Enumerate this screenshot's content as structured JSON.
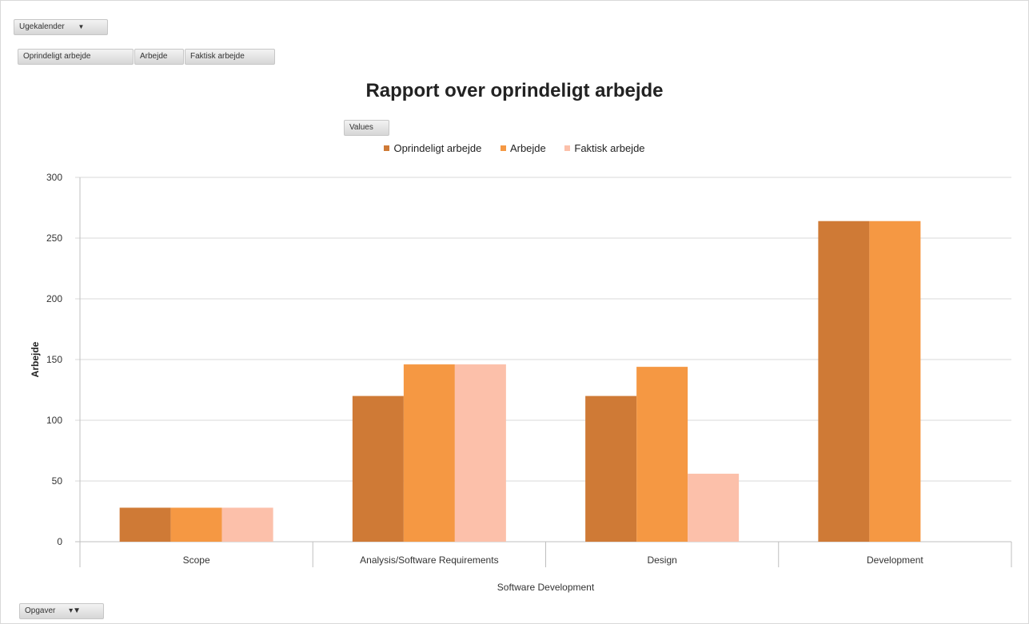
{
  "controls": {
    "calendar_filter": "Ugekalender",
    "value_fields": [
      "Oprindeligt arbejde",
      "Arbejde",
      "Faktisk arbejde"
    ],
    "values_button": "Values",
    "row_filter": "Opgaver"
  },
  "colors": {
    "series": [
      "#cf7a36",
      "#f59843",
      "#fcc0aa"
    ],
    "grid": "#d9d9d9",
    "axis": "#bfbfbf"
  },
  "chart_data": {
    "type": "bar",
    "title": "Rapport over oprindeligt arbejde",
    "xlabel": "Software Development",
    "ylabel": "Arbejde",
    "ylim": [
      0,
      300
    ],
    "yticks": [
      0,
      50,
      100,
      150,
      200,
      250,
      300
    ],
    "categories": [
      "Scope",
      "Analysis/Software Requirements",
      "Design",
      "Development"
    ],
    "series": [
      {
        "name": "Oprindeligt arbejde",
        "values": [
          28,
          120,
          120,
          264
        ]
      },
      {
        "name": "Arbejde",
        "values": [
          28,
          146,
          144,
          264
        ]
      },
      {
        "name": "Faktisk arbejde",
        "values": [
          28,
          146,
          56,
          0
        ]
      }
    ],
    "grid": true,
    "legend": "top-center"
  }
}
